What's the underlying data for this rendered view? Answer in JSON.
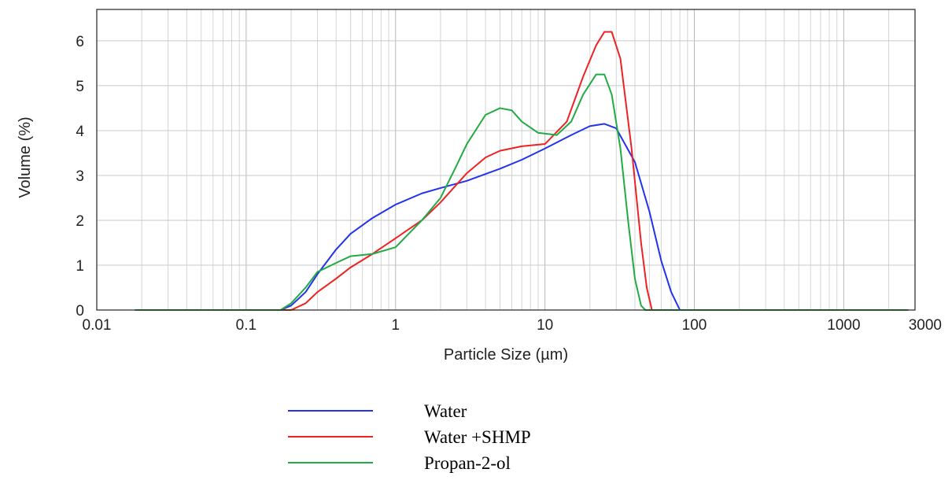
{
  "chart_data": {
    "type": "line",
    "xscale": "log",
    "xlim": [
      0.01,
      3000
    ],
    "ylim": [
      0,
      6.7
    ],
    "grid": true,
    "xlabel": "Particle Size (µm)",
    "ylabel": "Volume (%)",
    "x_ticks": [
      0.01,
      0.1,
      1,
      10,
      100,
      1000,
      3000
    ],
    "x_tick_labels": [
      "0.01",
      "0.1",
      "1",
      "10",
      "100",
      "1000",
      "3000"
    ],
    "y_ticks": [
      0,
      1,
      2,
      3,
      4,
      5,
      6
    ],
    "y_tick_labels": [
      "0",
      "1",
      "2",
      "3",
      "4",
      "5",
      "6"
    ],
    "legend_position": "bottom-center",
    "series": [
      {
        "name": "Water",
        "color": "#2233ee",
        "points": [
          [
            0.018,
            0
          ],
          [
            0.17,
            0
          ],
          [
            0.2,
            0.1
          ],
          [
            0.25,
            0.4
          ],
          [
            0.3,
            0.8
          ],
          [
            0.4,
            1.35
          ],
          [
            0.5,
            1.7
          ],
          [
            0.7,
            2.05
          ],
          [
            1,
            2.35
          ],
          [
            1.5,
            2.6
          ],
          [
            2,
            2.72
          ],
          [
            3,
            2.88
          ],
          [
            5,
            3.15
          ],
          [
            7,
            3.35
          ],
          [
            10,
            3.6
          ],
          [
            15,
            3.9
          ],
          [
            20,
            4.1
          ],
          [
            25,
            4.15
          ],
          [
            30,
            4.05
          ],
          [
            40,
            3.3
          ],
          [
            50,
            2.2
          ],
          [
            60,
            1.1
          ],
          [
            70,
            0.4
          ],
          [
            80,
            0
          ],
          [
            2700,
            0
          ]
        ]
      },
      {
        "name": "Water +SHMP",
        "color": "#ee2222",
        "points": [
          [
            0.018,
            0
          ],
          [
            0.2,
            0
          ],
          [
            0.25,
            0.15
          ],
          [
            0.3,
            0.4
          ],
          [
            0.4,
            0.7
          ],
          [
            0.5,
            0.95
          ],
          [
            0.7,
            1.25
          ],
          [
            1,
            1.6
          ],
          [
            1.5,
            2
          ],
          [
            2,
            2.4
          ],
          [
            3,
            3.05
          ],
          [
            4,
            3.4
          ],
          [
            5,
            3.55
          ],
          [
            7,
            3.65
          ],
          [
            10,
            3.7
          ],
          [
            14,
            4.2
          ],
          [
            18,
            5.2
          ],
          [
            22,
            5.9
          ],
          [
            25,
            6.2
          ],
          [
            28,
            6.2
          ],
          [
            32,
            5.6
          ],
          [
            38,
            3.6
          ],
          [
            44,
            1.5
          ],
          [
            48,
            0.5
          ],
          [
            52,
            0
          ],
          [
            2700,
            0
          ]
        ]
      },
      {
        "name": "Propan-2-ol",
        "color": "#22aa44",
        "points": [
          [
            0.018,
            0
          ],
          [
            0.17,
            0
          ],
          [
            0.2,
            0.15
          ],
          [
            0.25,
            0.5
          ],
          [
            0.3,
            0.85
          ],
          [
            0.4,
            1.05
          ],
          [
            0.5,
            1.2
          ],
          [
            0.7,
            1.25
          ],
          [
            1,
            1.4
          ],
          [
            1.5,
            2
          ],
          [
            2,
            2.5
          ],
          [
            2.5,
            3.15
          ],
          [
            3,
            3.7
          ],
          [
            4,
            4.35
          ],
          [
            5,
            4.5
          ],
          [
            6,
            4.45
          ],
          [
            7,
            4.2
          ],
          [
            9,
            3.95
          ],
          [
            12,
            3.9
          ],
          [
            15,
            4.2
          ],
          [
            18,
            4.8
          ],
          [
            22,
            5.25
          ],
          [
            25,
            5.25
          ],
          [
            28,
            4.8
          ],
          [
            32,
            3.6
          ],
          [
            36,
            2.0
          ],
          [
            40,
            0.7
          ],
          [
            44,
            0.1
          ],
          [
            47,
            0
          ],
          [
            2700,
            0
          ]
        ]
      }
    ]
  }
}
